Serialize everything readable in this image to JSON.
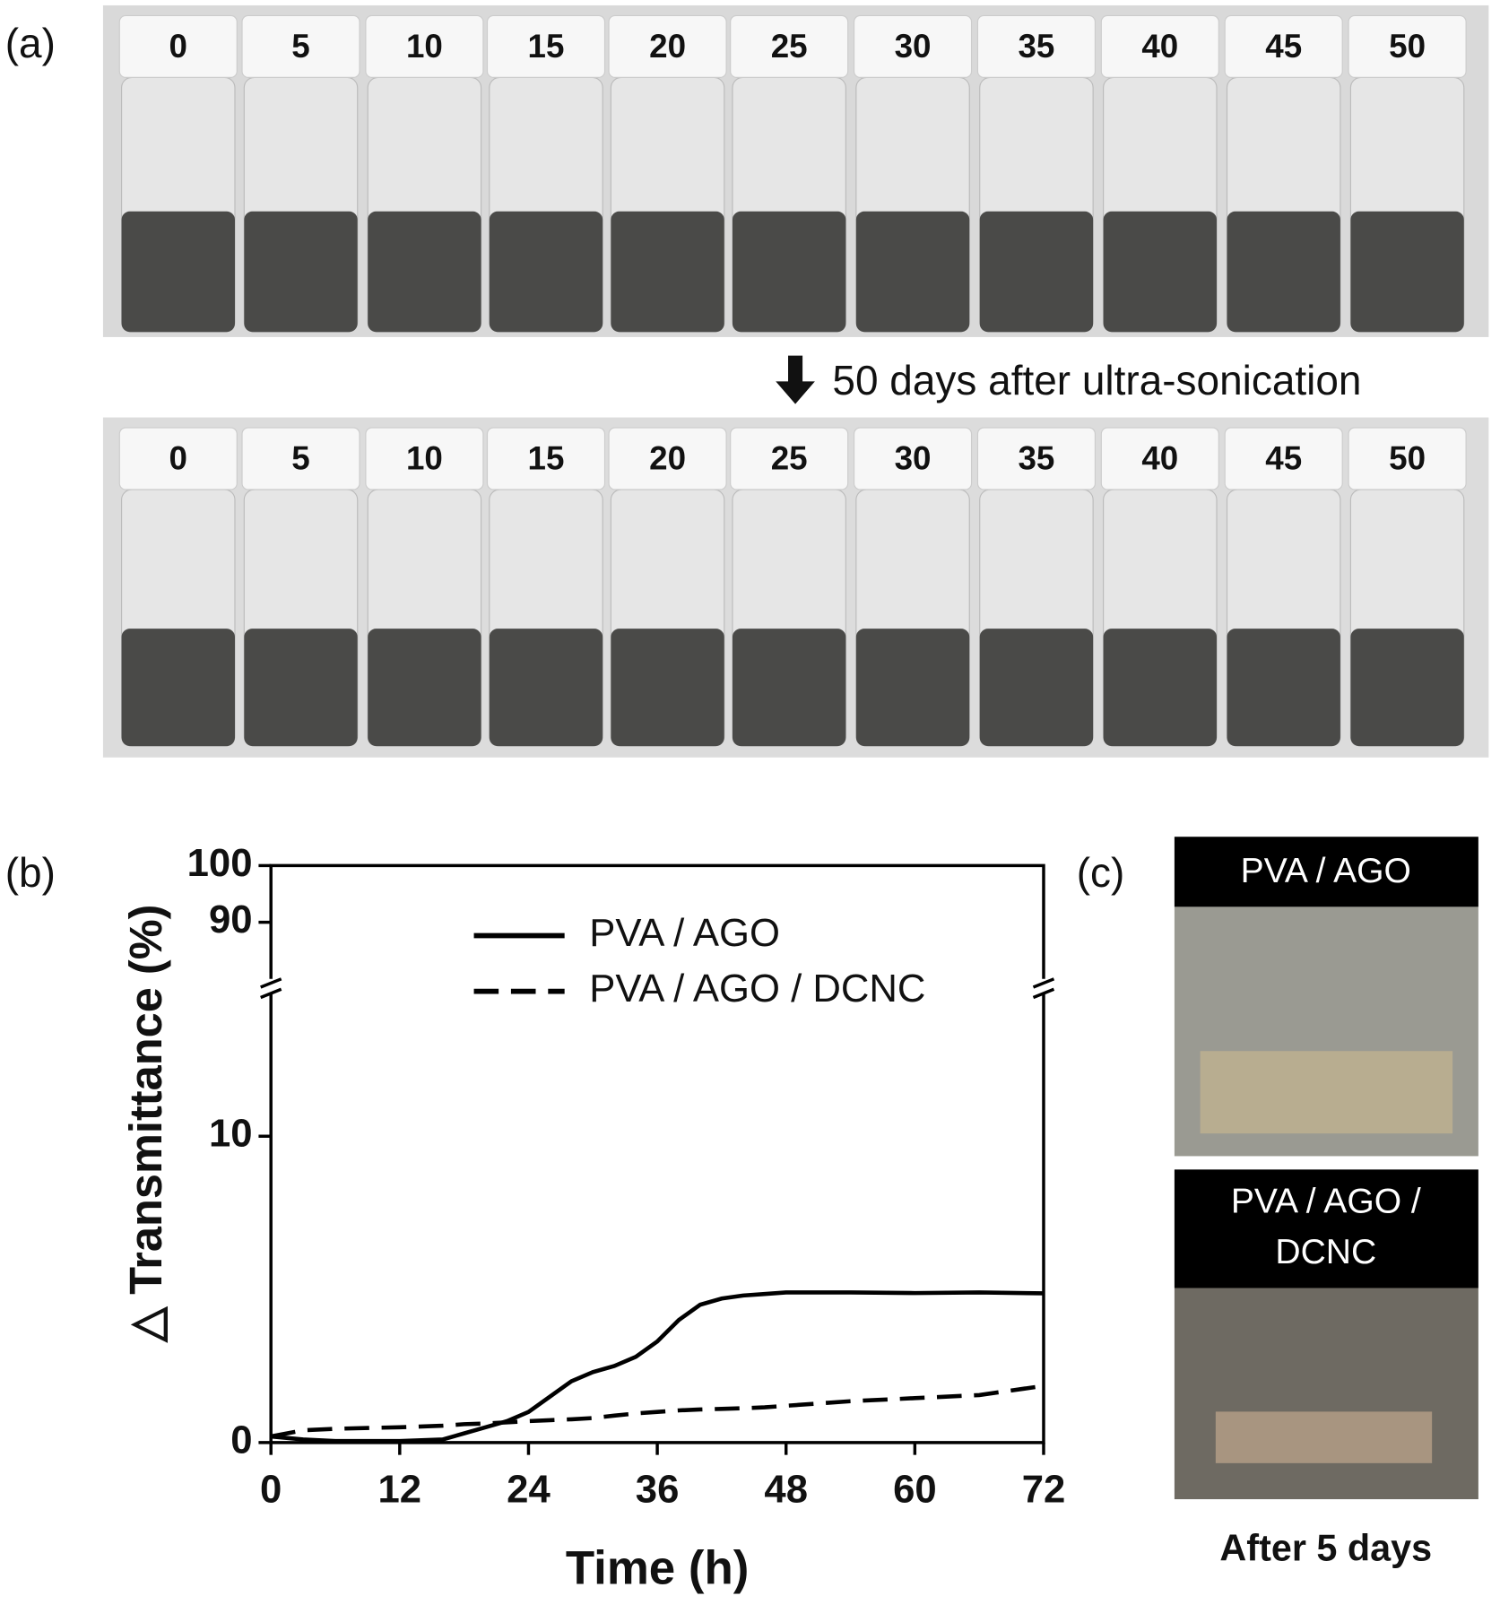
{
  "panel_a": {
    "label": "(a)",
    "top_vials": [
      "0",
      "5",
      "10",
      "15",
      "20",
      "25",
      "30",
      "35",
      "40",
      "45",
      "50"
    ],
    "arrow_text": "50 days after ultra-sonication",
    "bottom_vials": [
      "0",
      "5",
      "10",
      "15",
      "20",
      "25",
      "30",
      "35",
      "40",
      "45",
      "50"
    ]
  },
  "chart_data": {
    "type": "line",
    "panel_label": "(b)",
    "xlabel": "Time (h)",
    "ylabel": "△ Transmittance (%)",
    "x": [
      0,
      3,
      6,
      12,
      16,
      18,
      20,
      22,
      24,
      26,
      28,
      30,
      32,
      34,
      36,
      38,
      40,
      42,
      44,
      46,
      48,
      54,
      60,
      66,
      72
    ],
    "series": [
      {
        "name": "PVA / AGO",
        "color": "#000000",
        "dash": false,
        "values": [
          0.2,
          0.1,
          0.05,
          0.05,
          0.1,
          0.3,
          0.5,
          0.7,
          1.0,
          1.5,
          2.0,
          2.3,
          2.5,
          2.8,
          3.3,
          4.0,
          4.5,
          4.7,
          4.8,
          4.85,
          4.9,
          4.9,
          4.88,
          4.9,
          4.87
        ]
      },
      {
        "name": "PVA / AGO / DCNC",
        "color": "#000000",
        "dash": true,
        "values": [
          0.2,
          0.4,
          0.45,
          0.5,
          0.55,
          0.6,
          0.62,
          0.66,
          0.7,
          0.73,
          0.76,
          0.8,
          0.88,
          0.95,
          1.0,
          1.05,
          1.08,
          1.1,
          1.12,
          1.15,
          1.2,
          1.35,
          1.45,
          1.55,
          1.85
        ]
      }
    ],
    "xlim": [
      0,
      72
    ],
    "xticks": [
      0,
      12,
      24,
      36,
      48,
      60,
      72
    ],
    "ylim": [
      0,
      15
    ],
    "yticks": [
      0,
      10
    ],
    "ylim_upper": [
      80,
      100
    ],
    "yticks_upper": [
      90,
      100
    ]
  },
  "panel_c": {
    "label": "(c)",
    "top_label": "PVA / AGO",
    "bottom_label_lines": [
      "PVA / AGO /",
      "DCNC"
    ],
    "caption": "After 5 days"
  }
}
